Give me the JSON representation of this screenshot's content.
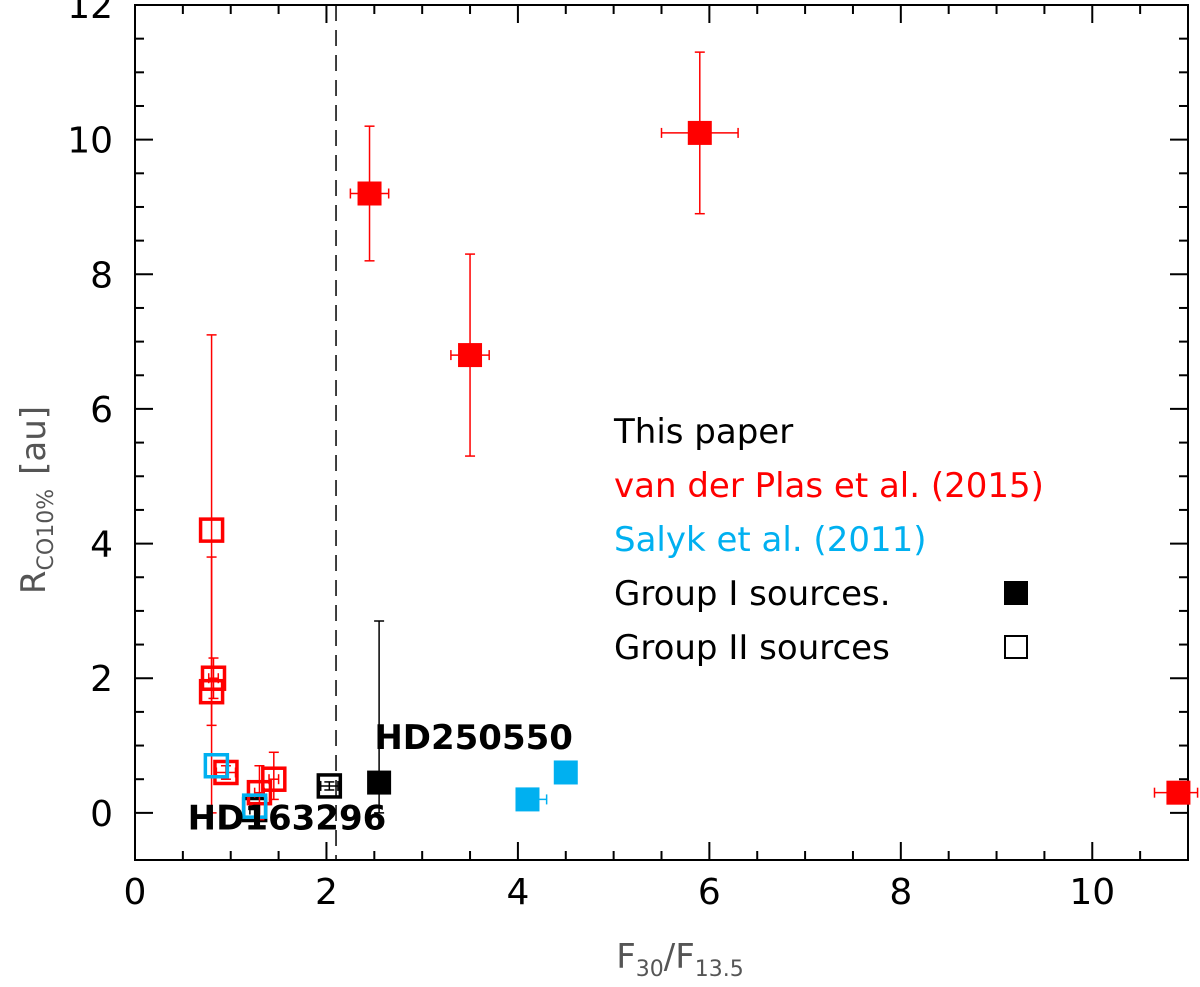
{
  "chart_data": {
    "type": "scatter",
    "xlabel": {
      "main": "F",
      "sub1": "30",
      "slash": "/F",
      "sub2": "13.5"
    },
    "ylabel": {
      "main": "R",
      "sub": "CO10%",
      "unit": "[au]"
    },
    "xlim": [
      0,
      11
    ],
    "ylim": [
      -0.7,
      12
    ],
    "xticks": [
      0,
      2,
      4,
      6,
      8,
      10
    ],
    "yticks": [
      0,
      2,
      4,
      6,
      8,
      10,
      12
    ],
    "vline_x": 2.1,
    "colors": {
      "this_paper": "#000000",
      "van_der_plas": "#ff0000",
      "salyk": "#00b0f0"
    },
    "legend": {
      "position": "center-right",
      "entries": [
        {
          "text": "This paper",
          "color": "#000000"
        },
        {
          "text": "van der Plas et al. (2015)",
          "color": "#ff0000"
        },
        {
          "text": "Salyk et al. (2011)",
          "color": "#00b0f0"
        },
        {
          "text": "Group I sources.",
          "color": "#000000",
          "marker": "filled-square"
        },
        {
          "text": "Group II sources",
          "color": "#000000",
          "marker": "open-square"
        }
      ]
    },
    "annotations": [
      {
        "text": "HD250550",
        "x": 2.5,
        "y": 0.95
      },
      {
        "text": "HD163296",
        "x": 0.55,
        "y": -0.25
      }
    ],
    "series": [
      {
        "source": "this_paper",
        "points": [
          {
            "x": 2.03,
            "y": 0.4,
            "filled": false,
            "xerr": [
              0.09,
              0.09
            ],
            "yerr": [
              0.06,
              0.06
            ]
          },
          {
            "x": 2.55,
            "y": 0.45,
            "filled": true,
            "xerr": [
              0,
              0
            ],
            "yerr": [
              0.45,
              2.4
            ]
          },
          {
            "x": 1.25,
            "y": 0.05,
            "filled": false,
            "xerr": [
              0.05,
              0.05
            ],
            "yerr": [
              0.1,
              0.1
            ]
          }
        ]
      },
      {
        "source": "van_der_plas",
        "points": [
          {
            "x": 2.45,
            "y": 9.2,
            "filled": true,
            "xerr": [
              0.2,
              0.2
            ],
            "yerr": [
              1.0,
              1.0
            ]
          },
          {
            "x": 5.9,
            "y": 10.1,
            "filled": true,
            "xerr": [
              0.4,
              0.4
            ],
            "yerr": [
              1.2,
              1.2
            ]
          },
          {
            "x": 3.5,
            "y": 6.8,
            "filled": true,
            "xerr": [
              0.2,
              0.2
            ],
            "yerr": [
              1.5,
              1.5
            ]
          },
          {
            "x": 10.9,
            "y": 0.3,
            "filled": true,
            "xerr": [
              0.25,
              0.2
            ],
            "yerr": [
              0.15,
              0.15
            ]
          },
          {
            "x": 0.8,
            "y": 4.2,
            "filled": false,
            "xerr": [
              0,
              0
            ],
            "yerr": [
              4.2,
              2.9
            ]
          },
          {
            "x": 0.82,
            "y": 2.0,
            "filled": false,
            "xerr": [
              0.05,
              0.05
            ],
            "yerr": [
              0.3,
              0.3
            ]
          },
          {
            "x": 0.8,
            "y": 1.8,
            "filled": false,
            "xerr": [
              0,
              0
            ],
            "yerr": [
              0.5,
              2.0
            ]
          },
          {
            "x": 0.95,
            "y": 0.6,
            "filled": false,
            "xerr": [
              0.1,
              0.1
            ],
            "yerr": [
              0.1,
              0.1
            ]
          },
          {
            "x": 1.45,
            "y": 0.5,
            "filled": false,
            "xerr": [
              0.05,
              0.05
            ],
            "yerr": [
              0.3,
              0.4
            ]
          },
          {
            "x": 1.3,
            "y": 0.3,
            "filled": false,
            "xerr": [
              0.05,
              0.05
            ],
            "yerr": [
              0.4,
              0.4
            ]
          }
        ]
      },
      {
        "source": "salyk",
        "points": [
          {
            "x": 4.1,
            "y": 0.2,
            "filled": true,
            "xerr": [
              0.1,
              0.2
            ],
            "yerr": [
              0,
              0
            ]
          },
          {
            "x": 4.5,
            "y": 0.6,
            "filled": true,
            "xerr": [
              0,
              0
            ],
            "yerr": [
              0,
              0
            ]
          },
          {
            "x": 0.85,
            "y": 0.7,
            "filled": false,
            "xerr": [
              0,
              0
            ],
            "yerr": [
              0,
              0
            ]
          },
          {
            "x": 1.25,
            "y": 0.1,
            "filled": false,
            "xerr": [
              0,
              0
            ],
            "yerr": [
              0,
              0
            ]
          }
        ]
      }
    ]
  }
}
